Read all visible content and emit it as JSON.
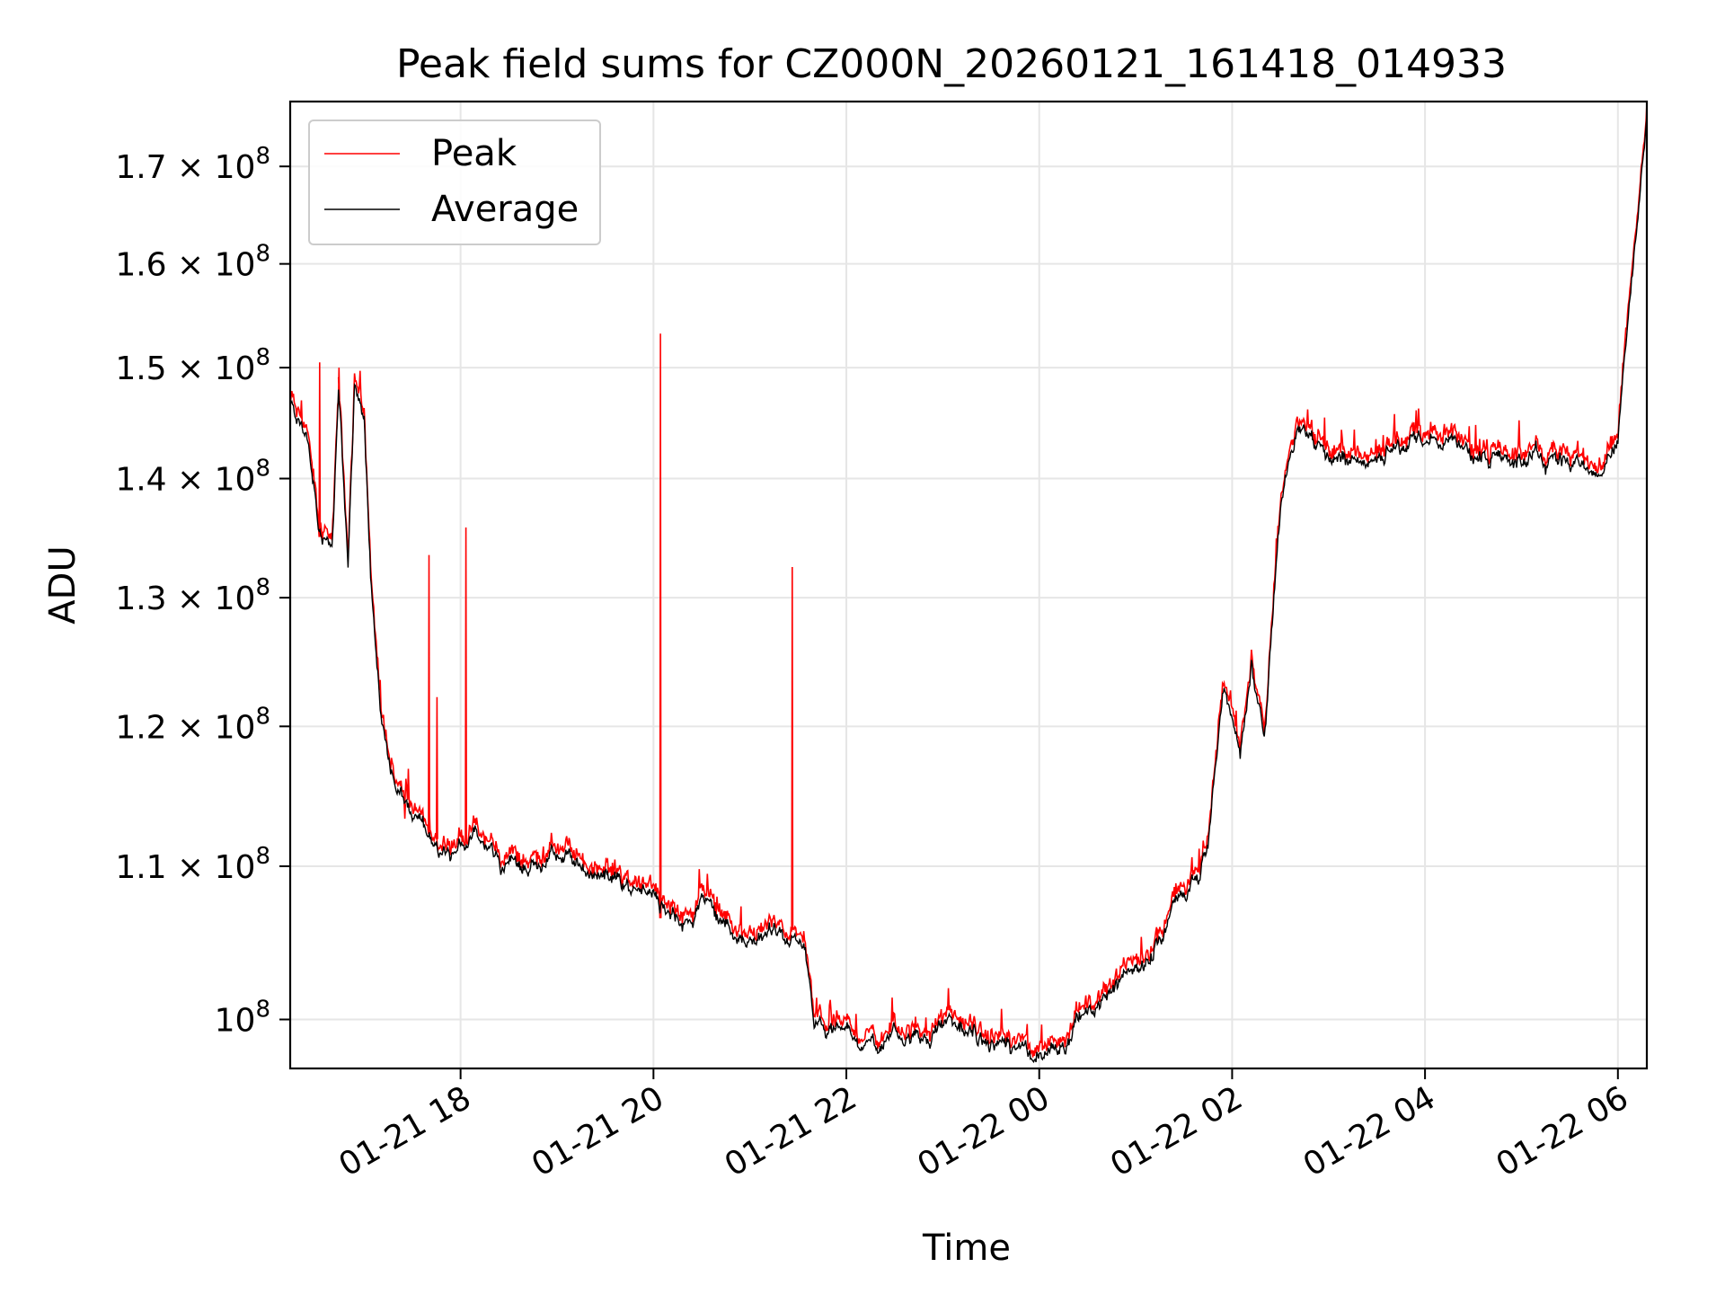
{
  "chart_data": {
    "type": "line",
    "title": "Peak field sums for CZ000N_20260121_161418_014933",
    "xlabel": "Time",
    "ylabel": "ADU",
    "x_ticks": [
      "01-21 18",
      "01-21 20",
      "01-21 22",
      "01-22 00",
      "01-22 02",
      "01-22 04",
      "01-22 06"
    ],
    "y_scale": "log",
    "ylim": [
      97000000,
      177000000
    ],
    "xlim": [
      "2026-01-21 16:14",
      "2026-01-22 06:18"
    ],
    "grid": true,
    "legend_position": "upper-left",
    "y_ticks": [
      {
        "mant": "",
        "exp": "8",
        "value": 100000000
      },
      {
        "mant": "1.1",
        "exp": "8",
        "value": 110000000
      },
      {
        "mant": "1.2",
        "exp": "8",
        "value": 120000000
      },
      {
        "mant": "1.3",
        "exp": "8",
        "value": 130000000
      },
      {
        "mant": "1.4",
        "exp": "8",
        "value": 140000000
      },
      {
        "mant": "1.5",
        "exp": "8",
        "value": 150000000
      },
      {
        "mant": "1.6",
        "exp": "8",
        "value": 160000000
      },
      {
        "mant": "1.7",
        "exp": "8",
        "value": 170000000
      }
    ],
    "series": [
      {
        "name": "Average",
        "color": "#000000",
        "x": [
          "2026-01-21 16:14",
          "2026-01-21 16:24",
          "2026-01-21 16:32",
          "2026-01-21 16:40",
          "2026-01-21 16:44",
          "2026-01-21 16:50",
          "2026-01-21 16:54",
          "2026-01-21 17:00",
          "2026-01-21 17:04",
          "2026-01-21 17:10",
          "2026-01-21 17:20",
          "2026-01-21 17:30",
          "2026-01-21 17:50",
          "2026-01-21 18:10",
          "2026-01-21 18:30",
          "2026-01-21 19:00",
          "2026-01-21 19:30",
          "2026-01-21 19:50",
          "2026-01-21 20:00",
          "2026-01-21 20:02",
          "2026-01-21 20:04",
          "2026-01-21 20:30",
          "2026-01-21 20:50",
          "2026-01-21 21:10",
          "2026-01-21 21:28",
          "2026-01-21 21:34",
          "2026-01-21 21:40",
          "2026-01-21 21:50",
          "2026-01-21 22:10",
          "2026-01-21 22:40",
          "2026-01-21 23:10",
          "2026-01-21 23:30",
          "2026-01-21 23:45",
          "2026-01-21 23:55",
          "2026-01-22 00:10",
          "2026-01-22 00:30",
          "2026-01-22 00:50",
          "2026-01-22 01:10",
          "2026-01-22 01:20",
          "2026-01-22 01:30",
          "2026-01-22 01:40",
          "2026-01-22 01:45",
          "2026-01-22 01:55",
          "2026-01-22 02:05",
          "2026-01-22 02:12",
          "2026-01-22 02:20",
          "2026-01-22 02:30",
          "2026-01-22 02:40",
          "2026-01-22 03:00",
          "2026-01-22 03:20",
          "2026-01-22 03:40",
          "2026-01-22 04:00",
          "2026-01-22 04:30",
          "2026-01-22 05:00",
          "2026-01-22 05:20",
          "2026-01-22 05:30",
          "2026-01-22 05:40",
          "2026-01-22 05:50",
          "2026-01-22 06:00",
          "2026-01-22 06:10",
          "2026-01-22 06:18"
        ],
        "values": [
          146500000,
          144000000,
          135000000,
          134500000,
          147000000,
          133000000,
          147500000,
          146000000,
          133000000,
          122000000,
          115500000,
          113000000,
          111500000,
          111800000,
          110000000,
          110200000,
          109600000,
          108500000,
          107800000,
          107400000,
          106500000,
          107500000,
          105500000,
          105200000,
          105800000,
          104500000,
          99500000,
          98700000,
          98600000,
          99400000,
          99300000,
          98600000,
          97800000,
          97400000,
          98300000,
          100300000,
          102200000,
          104800000,
          106600000,
          108400000,
          109500000,
          111500000,
          123500000,
          118000000,
          125000000,
          118500000,
          137500000,
          144500000,
          142500000,
          141500000,
          142500000,
          143500000,
          142500000,
          142000000,
          142300000,
          141500000,
          141200000,
          142000000,
          144000000,
          160000000,
          176500000
        ]
      },
      {
        "name": "Peak",
        "color": "#ff0000",
        "spikes": [
          {
            "x": "2026-01-21 16:32",
            "value": 150500000
          },
          {
            "x": "2026-01-21 16:44",
            "value": 150000000
          },
          {
            "x": "2026-01-21 17:25",
            "value": 113300000
          },
          {
            "x": "2026-01-21 17:40",
            "value": 133500000
          },
          {
            "x": "2026-01-21 17:45",
            "value": 122200000
          },
          {
            "x": "2026-01-21 18:03",
            "value": 135800000
          },
          {
            "x": "2026-01-21 20:04",
            "value": 153200000
          },
          {
            "x": "2026-01-21 21:26",
            "value": 132500000
          }
        ]
      }
    ]
  }
}
